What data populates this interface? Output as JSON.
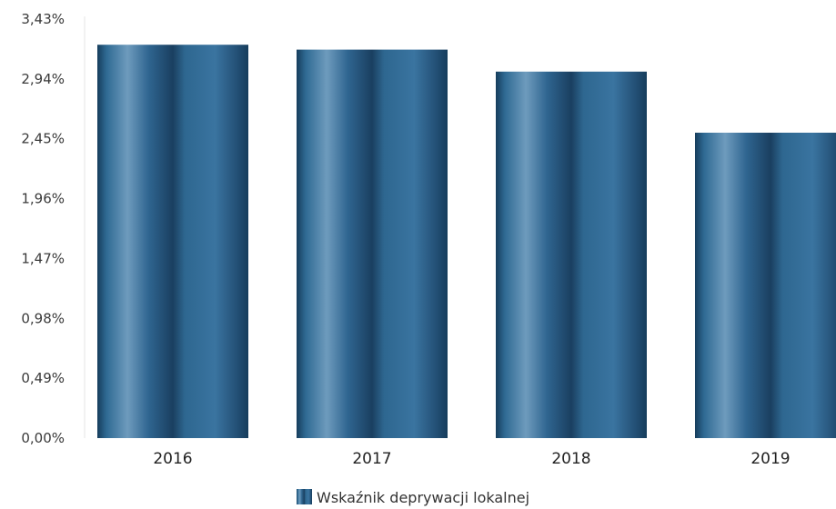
{
  "chart_data": {
    "type": "bar",
    "categories": [
      "2016",
      "2017",
      "2018",
      "2019"
    ],
    "series": [
      {
        "name": "Wskaźnik deprywacji lokalnej",
        "values": [
          3.22,
          3.18,
          3.0,
          2.5
        ]
      }
    ],
    "yticks": [
      "0,00%",
      "0,49%",
      "0,98%",
      "1,47%",
      "1,96%",
      "2,45%",
      "2,94%",
      "3,43%"
    ],
    "ylim": [
      0,
      3.43
    ],
    "grid": false,
    "legend": "bottom",
    "bar_color": "#2a5f86"
  }
}
